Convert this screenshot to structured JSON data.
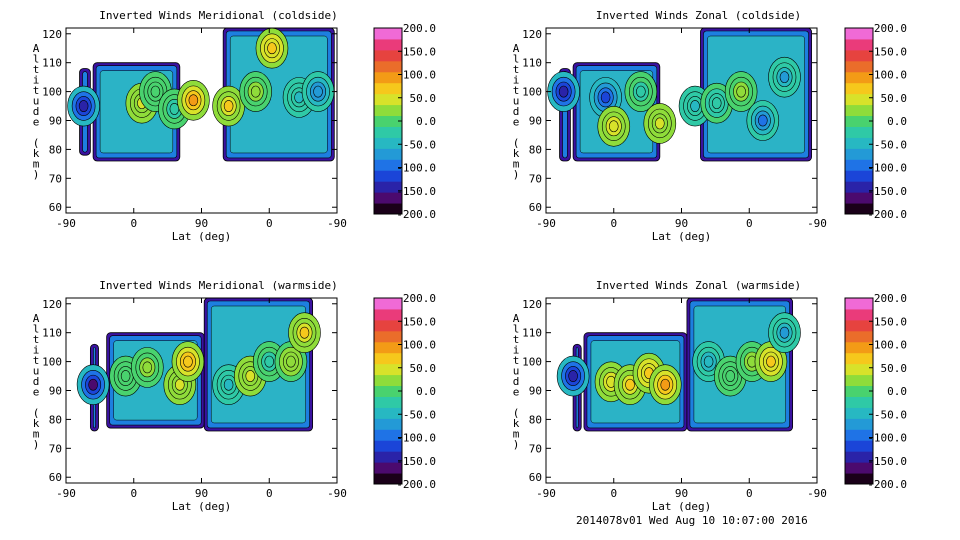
{
  "figure": {
    "footer": "2014078v01 Wed Aug 10 10:07:00 2016"
  },
  "panels": [
    {
      "title": "Inverted Winds Meridional (coldside)",
      "xlabel": "Lat (deg)",
      "ylabel": "Altitude (km)"
    },
    {
      "title": "Inverted Winds Zonal (coldside)",
      "xlabel": "Lat (deg)",
      "ylabel": "Altitude (km)"
    },
    {
      "title": "Inverted Winds Meridional (warmside)",
      "xlabel": "Lat (deg)",
      "ylabel": "Altitude (km)"
    },
    {
      "title": "Inverted Winds Zonal (warmside)",
      "xlabel": "Lat (deg)",
      "ylabel": "Altitude (km)"
    }
  ],
  "chart_data": [
    {
      "type": "heatmap",
      "title": "Inverted Winds Meridional (coldside)",
      "xlabel": "Lat (deg)",
      "ylabel": "Altitude (km)",
      "xticks": [
        "-90",
        "0",
        "90",
        "0",
        "-90"
      ],
      "yticks": [
        60,
        70,
        80,
        90,
        100,
        110,
        120
      ],
      "ylim": [
        58,
        122
      ],
      "colorbar": {
        "ticks": [
          "200.0",
          "150.0",
          "100.0",
          "50.0",
          "0.0",
          "-50.0",
          "-100.0",
          "-150.0",
          "-200.0"
        ],
        "range": [
          -200,
          200
        ]
      },
      "blobs": [
        {
          "x": 0.065,
          "y": 95,
          "value": -150
        },
        {
          "x": 0.28,
          "y": 96,
          "value": 40
        },
        {
          "x": 0.33,
          "y": 100,
          "value": 10
        },
        {
          "x": 0.4,
          "y": 94,
          "value": -20
        },
        {
          "x": 0.47,
          "y": 97,
          "value": 90
        },
        {
          "x": 0.6,
          "y": 95,
          "value": 60
        },
        {
          "x": 0.7,
          "y": 100,
          "value": 20
        },
        {
          "x": 0.76,
          "y": 115,
          "value": 70
        },
        {
          "x": 0.86,
          "y": 98,
          "value": -40
        },
        {
          "x": 0.93,
          "y": 100,
          "value": -80
        }
      ]
    },
    {
      "type": "heatmap",
      "title": "Inverted Winds Zonal (coldside)",
      "xlabel": "Lat (deg)",
      "ylabel": "Altitude (km)",
      "xticks": [
        "-90",
        "0",
        "90",
        "0",
        "-90"
      ],
      "yticks": [
        60,
        70,
        80,
        90,
        100,
        110,
        120
      ],
      "ylim": [
        58,
        122
      ],
      "colorbar": {
        "ticks": [
          "200.0",
          "150.0",
          "100.0",
          "50.0",
          "0.0",
          "-50.0",
          "-100.0",
          "-150.0",
          "-200.0"
        ],
        "range": [
          -200,
          200
        ]
      },
      "blobs": [
        {
          "x": 0.065,
          "y": 100,
          "value": -150
        },
        {
          "x": 0.22,
          "y": 98,
          "value": -110
        },
        {
          "x": 0.25,
          "y": 88,
          "value": 50
        },
        {
          "x": 0.35,
          "y": 100,
          "value": -20
        },
        {
          "x": 0.42,
          "y": 89,
          "value": 40
        },
        {
          "x": 0.55,
          "y": 95,
          "value": -40
        },
        {
          "x": 0.63,
          "y": 96,
          "value": -30
        },
        {
          "x": 0.72,
          "y": 100,
          "value": 20
        },
        {
          "x": 0.8,
          "y": 90,
          "value": -100
        },
        {
          "x": 0.88,
          "y": 105,
          "value": -60
        }
      ]
    },
    {
      "type": "heatmap",
      "title": "Inverted Winds Meridional (warmside)",
      "xlabel": "Lat (deg)",
      "ylabel": "Altitude (km)",
      "xticks": [
        "-90",
        "0",
        "90",
        "0",
        "-90"
      ],
      "yticks": [
        60,
        70,
        80,
        90,
        100,
        110,
        120
      ],
      "ylim": [
        58,
        122
      ],
      "colorbar": {
        "ticks": [
          "200.0",
          "150.0",
          "100.0",
          "50.0",
          "0.0",
          "-50.0",
          "-100.0",
          "-150.0",
          "-200.0"
        ],
        "range": [
          -200,
          200
        ]
      },
      "blobs": [
        {
          "x": 0.1,
          "y": 92,
          "value": -160
        },
        {
          "x": 0.22,
          "y": 95,
          "value": 0
        },
        {
          "x": 0.3,
          "y": 98,
          "value": 20
        },
        {
          "x": 0.42,
          "y": 92,
          "value": 40
        },
        {
          "x": 0.45,
          "y": 100,
          "value": 80
        },
        {
          "x": 0.6,
          "y": 92,
          "value": -40
        },
        {
          "x": 0.68,
          "y": 95,
          "value": 40
        },
        {
          "x": 0.75,
          "y": 100,
          "value": -20
        },
        {
          "x": 0.83,
          "y": 100,
          "value": 30
        },
        {
          "x": 0.88,
          "y": 110,
          "value": 60
        }
      ]
    },
    {
      "type": "heatmap",
      "title": "Inverted Winds Zonal (warmside)",
      "xlabel": "Lat (deg)",
      "ylabel": "Altitude (km)",
      "xticks": [
        "-90",
        "0",
        "90",
        "0",
        "-90"
      ],
      "yticks": [
        60,
        70,
        80,
        90,
        100,
        110,
        120
      ],
      "ylim": [
        58,
        122
      ],
      "colorbar": {
        "ticks": [
          "200.0",
          "150.0",
          "100.0",
          "50.0",
          "0.0",
          "-50.0",
          "-100.0",
          "-150.0",
          "-200.0"
        ],
        "range": [
          -200,
          200
        ]
      },
      "blobs": [
        {
          "x": 0.1,
          "y": 95,
          "value": -150
        },
        {
          "x": 0.24,
          "y": 93,
          "value": 50
        },
        {
          "x": 0.31,
          "y": 92,
          "value": 60
        },
        {
          "x": 0.38,
          "y": 96,
          "value": 70
        },
        {
          "x": 0.44,
          "y": 92,
          "value": 90
        },
        {
          "x": 0.6,
          "y": 100,
          "value": -50
        },
        {
          "x": 0.68,
          "y": 95,
          "value": 0
        },
        {
          "x": 0.76,
          "y": 100,
          "value": 20
        },
        {
          "x": 0.83,
          "y": 100,
          "value": 70
        },
        {
          "x": 0.88,
          "y": 110,
          "value": -60
        }
      ]
    }
  ]
}
